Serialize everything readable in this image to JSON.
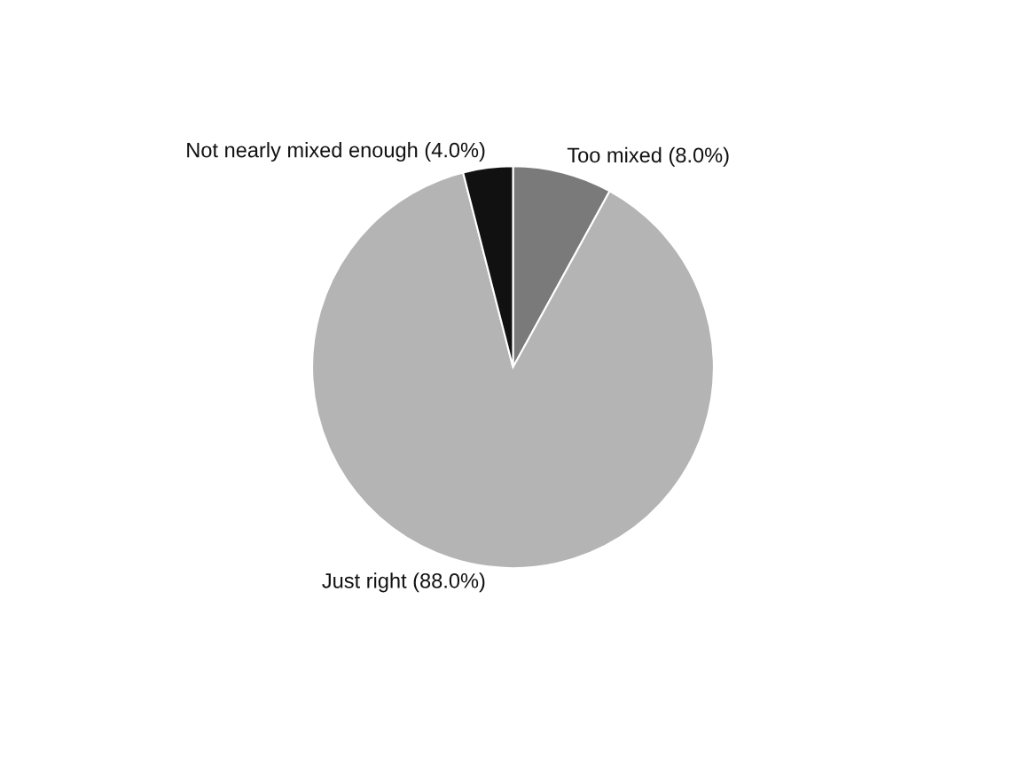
{
  "chart_data": {
    "type": "pie",
    "categories": [
      "Too mixed (8.0%)",
      "Just right (88.0%)",
      "Not nearly mixed enough (4.0%)"
    ],
    "values": [
      8,
      88,
      4
    ],
    "colors": [
      "#7a7a7a",
      "#b4b4b4",
      "#111111"
    ]
  }
}
